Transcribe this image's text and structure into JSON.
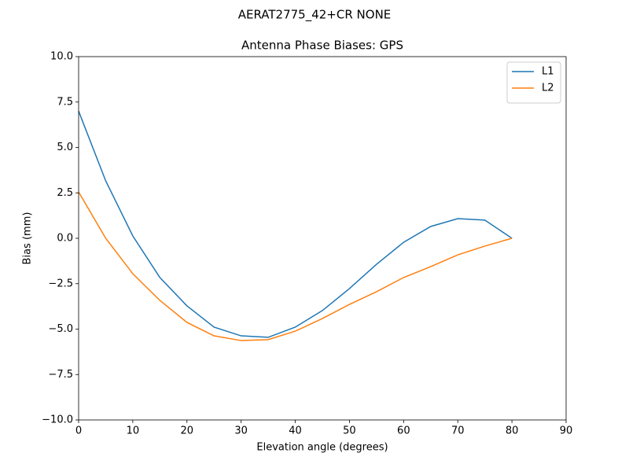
{
  "chart_data": {
    "type": "line",
    "suptitle": "AERAT2775_42+CR NONE",
    "title": "Antenna Phase Biases: GPS",
    "xlabel": "Elevation angle (degrees)",
    "ylabel": "Bias (mm)",
    "x": [
      0,
      5,
      10,
      15,
      20,
      25,
      30,
      35,
      40,
      45,
      50,
      55,
      60,
      65,
      70,
      75,
      80
    ],
    "series": [
      {
        "name": "L1",
        "color": "#1f77b4",
        "values": [
          7.0,
          3.16,
          0.13,
          -2.16,
          -3.72,
          -4.89,
          -5.37,
          -5.45,
          -4.89,
          -3.98,
          -2.77,
          -1.43,
          -0.22,
          0.65,
          1.08,
          1.0,
          0.0
        ]
      },
      {
        "name": "L2",
        "color": "#ff7f0e",
        "values": [
          2.55,
          0.0,
          -1.95,
          -3.42,
          -4.63,
          -5.37,
          -5.63,
          -5.58,
          -5.11,
          -4.42,
          -3.64,
          -2.94,
          -2.16,
          -1.56,
          -0.91,
          -0.43,
          0.0
        ]
      }
    ],
    "xlim": [
      0,
      90
    ],
    "xticks": [
      0,
      10,
      20,
      30,
      40,
      50,
      60,
      70,
      80,
      90
    ],
    "ylim": [
      -10,
      10
    ],
    "yticks": [
      {
        "value": -10,
        "label": "−10.0"
      },
      {
        "value": -7.5,
        "label": "−7.5"
      },
      {
        "value": -5,
        "label": "−5.0"
      },
      {
        "value": -2.5,
        "label": "−2.5"
      },
      {
        "value": 0,
        "label": "0.0"
      },
      {
        "value": 2.5,
        "label": "2.5"
      },
      {
        "value": 5,
        "label": "5.0"
      },
      {
        "value": 7.5,
        "label": "7.5"
      },
      {
        "value": 10,
        "label": "10.0"
      }
    ],
    "legend": "upper right"
  }
}
